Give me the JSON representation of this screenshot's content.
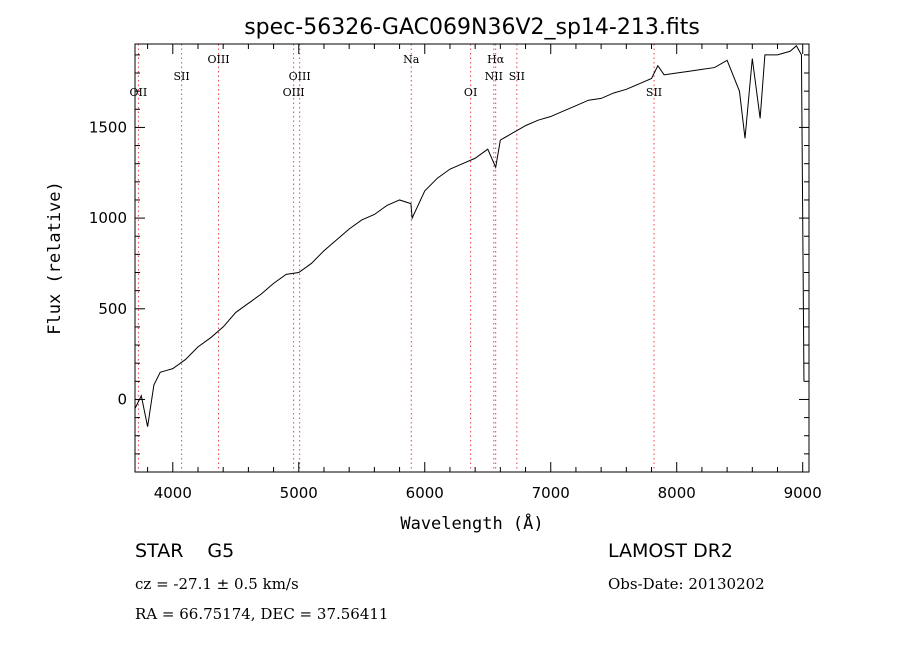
{
  "chart_data": {
    "type": "line",
    "title": "spec-56326-GAC069N36V2_sp14-213.fits",
    "xlabel": "Wavelength (Å)",
    "ylabel": "Flux (relative)",
    "xlim": [
      3700,
      9050
    ],
    "ylim": [
      -400,
      1960
    ],
    "x_ticks": [
      4000,
      5000,
      6000,
      7000,
      8000,
      9000
    ],
    "x_tick_labels": [
      "4000",
      "5000",
      "6000",
      "7000",
      "8000",
      "9000"
    ],
    "y_ticks": [
      0,
      500,
      1000,
      1500
    ],
    "y_tick_labels": [
      "0",
      "500",
      "1000",
      "1500"
    ],
    "series": [
      {
        "name": "spectrum",
        "x": [
          3700,
          3750,
          3800,
          3850,
          3900,
          3950,
          4000,
          4100,
          4200,
          4300,
          4400,
          4500,
          4600,
          4700,
          4800,
          4900,
          5000,
          5100,
          5200,
          5300,
          5400,
          5500,
          5600,
          5700,
          5800,
          5890,
          5900,
          6000,
          6100,
          6200,
          6300,
          6400,
          6500,
          6563,
          6600,
          6700,
          6800,
          6900,
          7000,
          7100,
          7200,
          7300,
          7400,
          7500,
          7600,
          7700,
          7800,
          7850,
          7900,
          8000,
          8100,
          8200,
          8300,
          8400,
          8498,
          8542,
          8600,
          8662,
          8700,
          8800,
          8900,
          8950,
          8990,
          9010
        ],
        "values": [
          -50,
          20,
          -150,
          80,
          150,
          160,
          170,
          220,
          290,
          340,
          400,
          480,
          530,
          580,
          640,
          690,
          700,
          750,
          820,
          880,
          940,
          990,
          1020,
          1070,
          1100,
          1080,
          1000,
          1150,
          1220,
          1270,
          1300,
          1330,
          1380,
          1280,
          1430,
          1470,
          1510,
          1540,
          1560,
          1590,
          1620,
          1650,
          1660,
          1690,
          1710,
          1740,
          1770,
          1840,
          1790,
          1800,
          1810,
          1820,
          1830,
          1870,
          1700,
          1440,
          1880,
          1550,
          1900,
          1900,
          1920,
          1950,
          1900,
          100
        ]
      }
    ],
    "line_markers": [
      {
        "label": "OII",
        "wavelength": 3727
      },
      {
        "label": "SII",
        "wavelength": 4070
      },
      {
        "label": "OIII",
        "wavelength": 4363
      },
      {
        "label": "OIII",
        "wavelength": 4959
      },
      {
        "label": "OIII",
        "wavelength": 5007
      },
      {
        "label": "Na",
        "wavelength": 5893
      },
      {
        "label": "OI",
        "wavelength": 6364
      },
      {
        "label": "Hα",
        "wavelength": 6563
      },
      {
        "label": "NII",
        "wavelength": 6548
      },
      {
        "label": "SII",
        "wavelength": 6731
      },
      {
        "label": "SII",
        "wavelength": 7820
      }
    ]
  },
  "info": {
    "class_line": "STAR G5",
    "survey": "LAMOST DR2",
    "cz": "cz = -27.1 ± 0.5 km/s",
    "obs_date": "Obs-Date: 20130202",
    "ra_dec": "RA = 66.75174, DEC = 37.56411"
  },
  "colors": {
    "line": "#000000",
    "marker": "#e8454a",
    "axis": "#000000"
  }
}
